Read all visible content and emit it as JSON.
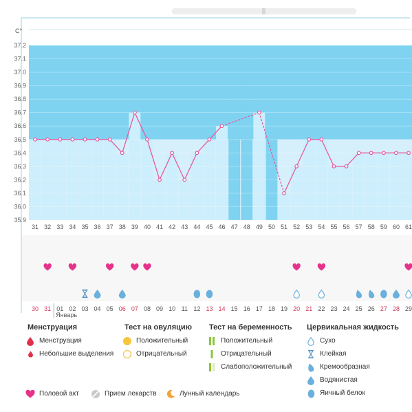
{
  "chart_data": {
    "type": "line",
    "unit": "C°",
    "y_ticks": [
      "35.9",
      "36.0",
      "36.1",
      "36.2",
      "36.3",
      "36.4",
      "36.5",
      "36.6",
      "36.7",
      "36.8",
      "36.9",
      "37.0",
      "37.1",
      "37.2"
    ],
    "ylim": [
      35.9,
      37.2
    ],
    "cycle_days": [
      31,
      32,
      33,
      34,
      35,
      36,
      37,
      38,
      39,
      40,
      41,
      42,
      43,
      44,
      45,
      46,
      47,
      48,
      49,
      50,
      51,
      52,
      53,
      54,
      55,
      56,
      57,
      58,
      59,
      60,
      61
    ],
    "temperatures": [
      36.5,
      36.5,
      36.5,
      36.5,
      36.5,
      36.5,
      36.5,
      36.4,
      36.7,
      36.5,
      36.2,
      36.4,
      36.2,
      36.4,
      36.5,
      36.6,
      null,
      null,
      36.7,
      null,
      36.1,
      36.3,
      36.5,
      36.5,
      36.3,
      36.3,
      36.4,
      36.4,
      36.4,
      36.4,
      36.4
    ],
    "highlighted_days": [
      47,
      48,
      50
    ],
    "dates": [
      {
        "label": "30",
        "weekend": true
      },
      {
        "label": "31",
        "weekend": true
      },
      {
        "label": "01",
        "weekend": false
      },
      {
        "label": "02",
        "weekend": false
      },
      {
        "label": "03",
        "weekend": false
      },
      {
        "label": "04",
        "weekend": false
      },
      {
        "label": "05",
        "weekend": false
      },
      {
        "label": "06",
        "weekend": true
      },
      {
        "label": "07",
        "weekend": true
      },
      {
        "label": "08",
        "weekend": false
      },
      {
        "label": "09",
        "weekend": false
      },
      {
        "label": "10",
        "weekend": false
      },
      {
        "label": "11",
        "weekend": false
      },
      {
        "label": "12",
        "weekend": false
      },
      {
        "label": "13",
        "weekend": true
      },
      {
        "label": "14",
        "weekend": true
      },
      {
        "label": "15",
        "weekend": false
      },
      {
        "label": "16",
        "weekend": false
      },
      {
        "label": "17",
        "weekend": false
      },
      {
        "label": "18",
        "weekend": false
      },
      {
        "label": "19",
        "weekend": false
      },
      {
        "label": "20",
        "weekend": true
      },
      {
        "label": "21",
        "weekend": true
      },
      {
        "label": "22",
        "weekend": false
      },
      {
        "label": "23",
        "weekend": false
      },
      {
        "label": "24",
        "weekend": false
      },
      {
        "label": "25",
        "weekend": false
      },
      {
        "label": "26",
        "weekend": false
      },
      {
        "label": "27",
        "weekend": true
      },
      {
        "label": "28",
        "weekend": true
      },
      {
        "label": "29",
        "weekend": false
      }
    ],
    "month_label": "Январь",
    "month_start_index": 2,
    "intercourse_days": [
      1,
      3,
      6,
      8,
      9,
      21,
      23,
      30
    ],
    "fluid_markers": [
      {
        "col": 4,
        "type": "sticky"
      },
      {
        "col": 5,
        "type": "watery"
      },
      {
        "col": 7,
        "type": "watery"
      },
      {
        "col": 13,
        "type": "egg-white"
      },
      {
        "col": 14,
        "type": "egg-white"
      },
      {
        "col": 21,
        "type": "dry"
      },
      {
        "col": 23,
        "type": "dry"
      },
      {
        "col": 26,
        "type": "creamy"
      },
      {
        "col": 27,
        "type": "creamy"
      },
      {
        "col": 28,
        "type": "egg-white"
      },
      {
        "col": 29,
        "type": "watery"
      },
      {
        "col": 30,
        "type": "dry"
      }
    ],
    "colors": {
      "line": "#e45aa0",
      "upper_zone": "#7fd3f1",
      "lower_zone": "#d6f0fb",
      "bar": "#cdeefc",
      "heart": "#e5338c",
      "fluid": "#6ab0dc",
      "weekend_text": "#d23a5a"
    }
  },
  "legend": {
    "menstruation": {
      "title": "Менструация",
      "items": [
        "Менструация",
        "Небольшие выделения"
      ]
    },
    "ovulation_test": {
      "title": "Тест на овуляцию",
      "items": [
        "Положительный",
        "Отрицательный"
      ]
    },
    "pregnancy_test": {
      "title": "Тест на беременность",
      "items": [
        "Положительный",
        "Отрицательный",
        "Слабоположительный"
      ]
    },
    "cervical_fluid": {
      "title": "Цервикальная жидкость",
      "items": [
        "Сухо",
        "Клейкая",
        "Кремообразная",
        "Водянистая",
        "Яичный белок"
      ]
    },
    "other": {
      "items": [
        "Половой акт",
        "Прием лекарств",
        "Лунный календарь"
      ]
    }
  }
}
